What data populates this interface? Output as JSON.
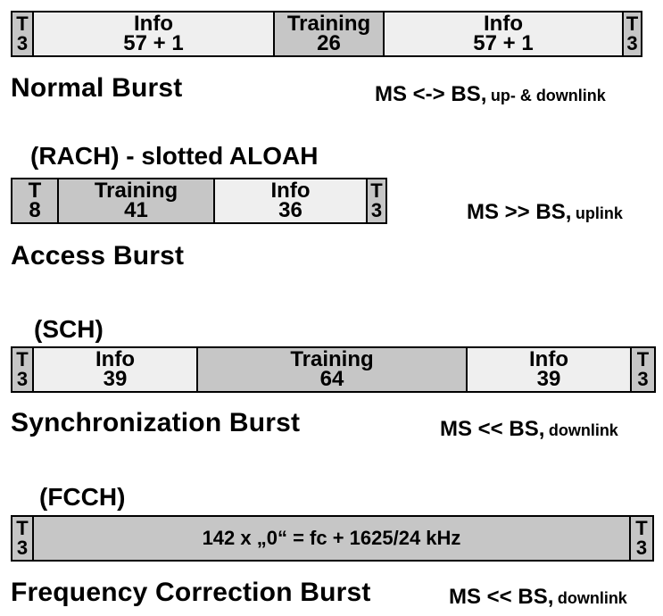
{
  "normal": {
    "segments": [
      {
        "l1": "T",
        "l2": "3"
      },
      {
        "l1": "Info",
        "l2": "57 + 1"
      },
      {
        "l1": "Training",
        "l2": "26"
      },
      {
        "l1": "Info",
        "l2": "57 + 1"
      },
      {
        "l1": "T",
        "l2": "3"
      }
    ],
    "name": "Normal Burst",
    "dir_main": "MS <-> BS,",
    "dir_sub": "up- & downlink"
  },
  "access": {
    "tag": "(RACH) - slotted ALOAH",
    "segments": [
      {
        "l1": "T",
        "l2": "8"
      },
      {
        "l1": "Training",
        "l2": "41"
      },
      {
        "l1": "Info",
        "l2": "36"
      },
      {
        "l1": "T",
        "l2": "3"
      }
    ],
    "name": "Access Burst",
    "dir_main": "MS >> BS,",
    "dir_sub": "uplink"
  },
  "sync": {
    "tag": "(SCH)",
    "segments": [
      {
        "l1": "T",
        "l2": "3"
      },
      {
        "l1": "Info",
        "l2": "39"
      },
      {
        "l1": "Training",
        "l2": "64"
      },
      {
        "l1": "Info",
        "l2": "39"
      },
      {
        "l1": "T",
        "l2": "3"
      }
    ],
    "name": "Synchronization Burst",
    "dir_main": "MS << BS,",
    "dir_sub": "downlink"
  },
  "freq": {
    "tag": "(FCCH)",
    "segments": [
      {
        "l1": "T",
        "l2": "3"
      },
      {
        "text": "142 x „0“ = fc + 1625/24 kHz"
      },
      {
        "l1": "T",
        "l2": "3"
      }
    ],
    "name": "Frequency Correction Burst",
    "dir_main": "MS << BS,",
    "dir_sub": "downlink"
  }
}
